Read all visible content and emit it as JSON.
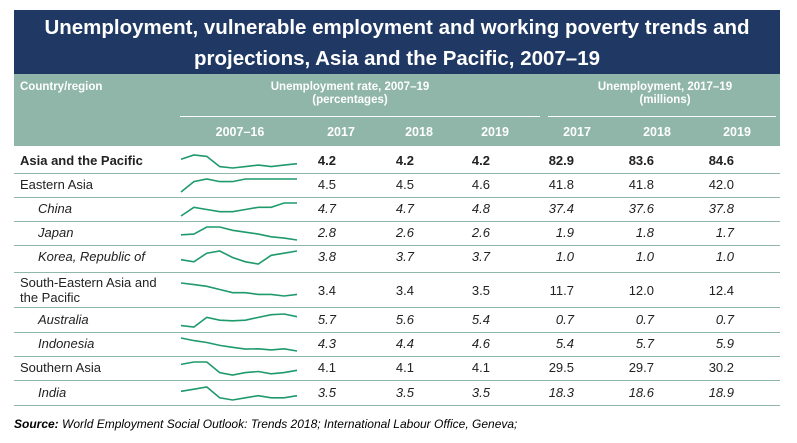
{
  "title": {
    "line1": "Unemployment, vulnerable employment and working poverty trends and",
    "line2": "projections, Asia and the Pacific, 2007–19"
  },
  "header": {
    "country": "Country/region",
    "rate_group_line1": "Unemployment rate, 2007–19",
    "rate_group_line2": "(percentages)",
    "count_group_line1": "Unemployment, 2017–19",
    "count_group_line2": "(millions)",
    "trend_col": "2007–16",
    "rate_cols": [
      "2017",
      "2018",
      "2019"
    ],
    "count_cols": [
      "2017",
      "2018",
      "2019"
    ]
  },
  "rows": [
    {
      "name": "Asia and the Pacific",
      "style": "bold",
      "rate": [
        "4.2",
        "4.2",
        "4.2"
      ],
      "count": [
        "82.9",
        "83.6",
        "84.6"
      ],
      "trend": [
        4.7,
        5.0,
        4.9,
        4.2,
        4.1,
        4.2,
        4.3,
        4.2,
        4.3,
        4.4
      ]
    },
    {
      "name": "Eastern Asia",
      "style": "normal",
      "rate": [
        "4.5",
        "4.5",
        "4.6"
      ],
      "count": [
        "41.8",
        "41.8",
        "42.0"
      ],
      "trend": [
        4.1,
        4.5,
        4.6,
        4.5,
        4.5,
        4.6,
        4.6,
        4.6,
        4.6,
        4.6
      ]
    },
    {
      "name": "China",
      "style": "italic",
      "rate": [
        "4.7",
        "4.7",
        "4.8"
      ],
      "count": [
        "37.4",
        "37.6",
        "37.8"
      ],
      "trend": [
        4.0,
        4.4,
        4.3,
        4.2,
        4.2,
        4.3,
        4.4,
        4.4,
        4.6,
        4.6
      ]
    },
    {
      "name": "Japan",
      "style": "italic",
      "rate": [
        "2.8",
        "2.6",
        "2.6"
      ],
      "count": [
        "1.9",
        "1.8",
        "1.7"
      ],
      "trend": [
        3.9,
        4.0,
        5.1,
        5.1,
        4.6,
        4.3,
        4.0,
        3.6,
        3.4,
        3.1
      ]
    },
    {
      "name": "Korea, Republic of",
      "style": "italic",
      "rate": [
        "3.8",
        "3.7",
        "3.7"
      ],
      "count": [
        "1.0",
        "1.0",
        "1.0"
      ],
      "trend": [
        3.3,
        3.2,
        3.6,
        3.7,
        3.4,
        3.2,
        3.1,
        3.5,
        3.6,
        3.7
      ]
    },
    {
      "name": "South-Eastern Asia and the Pacific",
      "style": "two",
      "rate": [
        "3.4",
        "3.4",
        "3.5"
      ],
      "count": [
        "11.7",
        "12.0",
        "12.4"
      ],
      "trend": [
        4.2,
        4.1,
        4.0,
        3.8,
        3.6,
        3.6,
        3.5,
        3.5,
        3.4,
        3.5
      ]
    },
    {
      "name": "Australia",
      "style": "italic",
      "rate": [
        "5.7",
        "5.6",
        "5.4"
      ],
      "count": [
        "0.7",
        "0.7",
        "0.7"
      ],
      "trend": [
        4.4,
        4.2,
        5.6,
        5.2,
        5.1,
        5.2,
        5.6,
        6.0,
        6.1,
        5.7
      ]
    },
    {
      "name": "Indonesia",
      "style": "italic",
      "rate": [
        "4.3",
        "4.4",
        "4.6"
      ],
      "count": [
        "5.4",
        "5.7",
        "5.9"
      ],
      "trend": [
        9.1,
        8.4,
        7.9,
        7.1,
        6.6,
        6.1,
        6.2,
        5.9,
        6.2,
        5.6
      ]
    },
    {
      "name": "Southern Asia",
      "style": "normal",
      "rate": [
        "4.1",
        "4.1",
        "4.1"
      ],
      "count": [
        "29.5",
        "29.7",
        "30.2"
      ],
      "trend": [
        4.7,
        4.9,
        4.9,
        4.0,
        3.8,
        4.0,
        4.1,
        3.9,
        4.0,
        4.2
      ]
    },
    {
      "name": "India",
      "style": "italic",
      "rate": [
        "3.5",
        "3.5",
        "3.5"
      ],
      "count": [
        "18.3",
        "18.6",
        "18.9"
      ],
      "trend": [
        3.4,
        3.5,
        3.6,
        3.1,
        3.0,
        3.1,
        3.2,
        3.1,
        3.1,
        3.2
      ]
    }
  ],
  "source": {
    "label": "Source:",
    "text": "World Employment Social Outlook: Trends 2018; International Labour Office, Geneva;"
  },
  "colors": {
    "title_bg": "#1f3864",
    "header_bg": "#8fb6a9",
    "spark": "#1f9a6c"
  }
}
